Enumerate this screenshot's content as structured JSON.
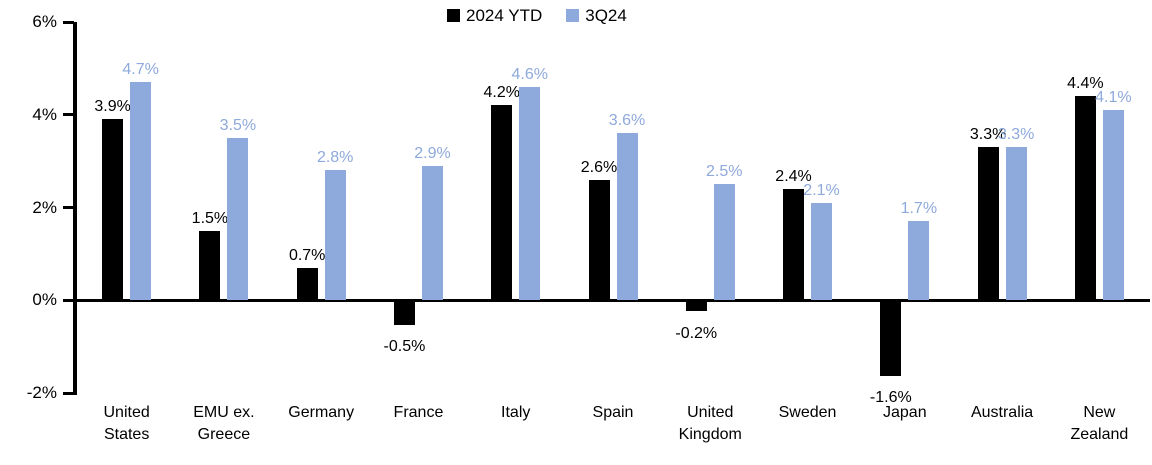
{
  "chart_data": {
    "type": "bar",
    "title": "",
    "xlabel": "",
    "ylabel": "",
    "categories": [
      "United\nStates",
      "EMU ex.\nGreece",
      "Germany",
      "France",
      "Italy",
      "Spain",
      "United\nKingdom",
      "Sweden",
      "Japan",
      "Australia",
      "New\nZealand"
    ],
    "series": [
      {
        "name": "2024 YTD",
        "color": "#000000",
        "values": [
          3.9,
          1.5,
          0.7,
          -0.5,
          4.2,
          2.6,
          -0.2,
          2.4,
          -1.6,
          3.3,
          4.4
        ],
        "labels": [
          "3.9%",
          "1.5%",
          "0.7%",
          "-0.5%",
          "4.2%",
          "2.6%",
          "-0.2%",
          "2.4%",
          "-1.6%",
          "3.3%",
          "4.4%"
        ]
      },
      {
        "name": "3Q24",
        "color": "#8EA9DB",
        "values": [
          4.7,
          3.5,
          2.8,
          2.9,
          4.6,
          3.6,
          2.5,
          2.1,
          1.7,
          3.3,
          4.1
        ],
        "labels": [
          "4.7%",
          "3.5%",
          "2.8%",
          "2.9%",
          "4.6%",
          "3.6%",
          "2.5%",
          "2.1%",
          "1.7%",
          "3.3%",
          "4.1%"
        ]
      }
    ],
    "ylim": [
      -2,
      6
    ],
    "yticks": [
      6,
      4,
      2,
      0,
      -2
    ],
    "ytick_labels": [
      "6%",
      "4%",
      "2%",
      "0%",
      "-2%"
    ],
    "grid": false,
    "legend_position": "top-center",
    "axis_color": "#000000",
    "background_color": "#FFFFFF"
  }
}
